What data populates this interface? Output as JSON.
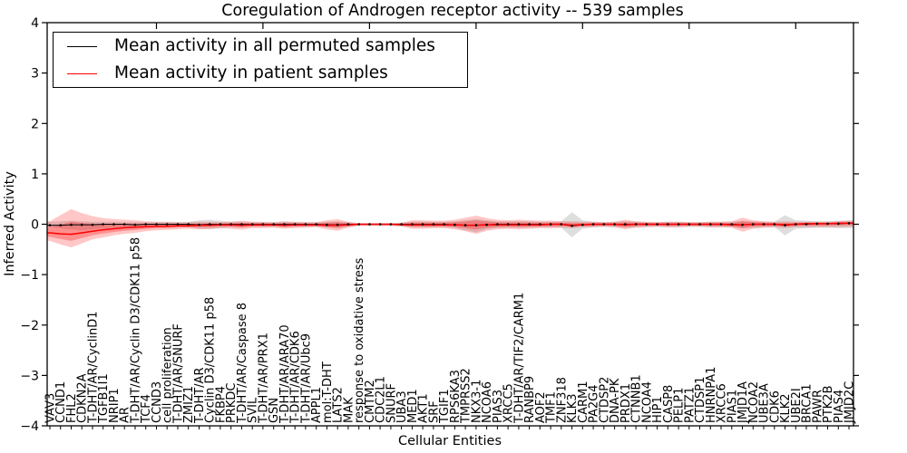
{
  "chart_data": {
    "type": "line",
    "title": "Coregulation of Androgen receptor activity -- 539 samples",
    "xlabel": "Cellular Entities",
    "ylabel": "Inferred Activity",
    "ylim": [
      -4,
      4
    ],
    "yticks": [
      "4",
      "3",
      "2",
      "1",
      "0",
      "−1",
      "−2",
      "−3",
      "−4"
    ],
    "grid": false,
    "legend_position": "upper left",
    "band_note": "shaded bands show spread around each mean line",
    "categories": [
      "VAV3",
      "CCND1",
      "FHL2",
      "CDKN2A",
      "T-DHT/AR/CyclinD1",
      "TGFB1I1",
      "NRIP1",
      "AR",
      "T-DHT/AR/Cyclin D3/CDK11 p58",
      "TCF4",
      "CCND3",
      "cell proliferation",
      "T-DHT/AR/SNURF",
      "ZMIZ1",
      "T-DHT/AR",
      "Cyclin D3/CDK11 p58",
      "FKBP4",
      "PRKDC",
      "T-DHT/AR/Caspase 8",
      "SVIL",
      "T-DHT/AR/PRX1",
      "GSN",
      "T-DHT/AR/ARA70",
      "T-DHT/AR/CDK6",
      "T-DHT/AR/Ubc9",
      "APPL1",
      "mol:T-DHT",
      "LATS2",
      "MAK",
      "response to oxidative stress",
      "CMTM2",
      "CDC2L1",
      "SNURF",
      "UBA3",
      "MED1",
      "AKT1",
      "SRF",
      "TGIF1",
      "RPS6KA3",
      "TMPRSS2",
      "NKX3-1",
      "NCOA6",
      "PIAS3",
      "XRCC5",
      "T-DHT/AR/TIF2/CARM1",
      "RANBP9",
      "AOF2",
      "TMF1",
      "ZNF318",
      "KLK3",
      "CARM1",
      "PA2G4",
      "CTDSP2",
      "DNA-PK",
      "PRDX1",
      "CTNNB1",
      "NCOA4",
      "HIP1",
      "CASP8",
      "PELP1",
      "PATZ1",
      "CTDSP1",
      "HNRNPA1",
      "XRCC6",
      "PIAS1",
      "JMJD1A",
      "NCOA2",
      "UBE3A",
      "CDK6",
      "KLK2",
      "UBE2I",
      "BRCA1",
      "PAWR",
      "PTK2B",
      "PIAS4",
      "JMJD2C"
    ],
    "series": [
      {
        "name": "Mean activity in all permuted samples",
        "color": "#000000",
        "band_color": "rgba(0,0,0,0.13)",
        "values": [
          -0.02,
          -0.02,
          -0.01,
          -0.01,
          -0.01,
          0,
          0,
          0,
          -0.01,
          0,
          0,
          0,
          0,
          0,
          -0.01,
          0,
          0,
          0,
          0,
          0,
          0,
          0,
          0,
          0,
          0,
          0,
          -0.01,
          -0.01,
          0,
          0,
          0,
          0,
          0,
          0,
          0,
          0,
          0,
          0,
          -0.01,
          -0.02,
          -0.02,
          -0.01,
          0,
          0,
          0,
          0,
          0,
          0,
          0,
          -0.03,
          -0.01,
          0,
          0,
          0,
          0,
          0,
          0,
          0,
          0,
          0,
          0,
          0,
          0,
          0,
          0,
          -0.01,
          0,
          0,
          0,
          -0.02,
          0,
          0,
          0.01,
          0.01,
          0.01,
          0.02
        ],
        "band_upper": [
          0.05,
          0.06,
          0.07,
          0.06,
          0.05,
          0.05,
          0.05,
          0.04,
          0.04,
          0.04,
          0.04,
          0.04,
          0.04,
          0.05,
          0.08,
          0.09,
          0.07,
          0.05,
          0.05,
          0.04,
          0.04,
          0.04,
          0.05,
          0.04,
          0.04,
          0.04,
          0.05,
          0.06,
          0.04,
          0.02,
          0.02,
          0.02,
          0.02,
          0.03,
          0.05,
          0.05,
          0.05,
          0.05,
          0.06,
          0.08,
          0.1,
          0.08,
          0.06,
          0.06,
          0.06,
          0.06,
          0.05,
          0.05,
          0.06,
          0.24,
          0.08,
          0.05,
          0.04,
          0.05,
          0.06,
          0.05,
          0.04,
          0.04,
          0.05,
          0.05,
          0.04,
          0.04,
          0.05,
          0.05,
          0.05,
          0.07,
          0.06,
          0.05,
          0.05,
          0.18,
          0.08,
          0.07,
          0.06,
          0.06,
          0.07,
          0.08
        ],
        "band_lower": [
          -0.06,
          -0.08,
          -0.1,
          -0.12,
          -0.1,
          -0.08,
          -0.07,
          -0.06,
          -0.06,
          -0.05,
          -0.05,
          -0.05,
          -0.05,
          -0.06,
          -0.09,
          -0.1,
          -0.08,
          -0.06,
          -0.06,
          -0.05,
          -0.05,
          -0.05,
          -0.06,
          -0.05,
          -0.05,
          -0.05,
          -0.06,
          -0.07,
          -0.05,
          -0.03,
          -0.03,
          -0.03,
          -0.03,
          -0.04,
          -0.06,
          -0.06,
          -0.06,
          -0.06,
          -0.07,
          -0.12,
          -0.16,
          -0.1,
          -0.07,
          -0.07,
          -0.07,
          -0.07,
          -0.06,
          -0.06,
          -0.07,
          -0.26,
          -0.09,
          -0.06,
          -0.05,
          -0.06,
          -0.07,
          -0.06,
          -0.05,
          -0.05,
          -0.06,
          -0.06,
          -0.05,
          -0.05,
          -0.06,
          -0.06,
          -0.06,
          -0.08,
          -0.07,
          -0.06,
          -0.06,
          -0.22,
          -0.09,
          -0.08,
          -0.07,
          -0.07,
          -0.08,
          -0.08
        ]
      },
      {
        "name": "Mean activity in patient samples",
        "color": "#ff0000",
        "band_color": "rgba(255,0,0,0.22)",
        "values": [
          -0.17,
          -0.19,
          -0.2,
          -0.17,
          -0.14,
          -0.11,
          -0.09,
          -0.07,
          -0.06,
          -0.05,
          -0.04,
          -0.04,
          -0.03,
          -0.03,
          -0.02,
          -0.02,
          -0.01,
          -0.01,
          -0.02,
          -0.01,
          -0.01,
          -0.01,
          -0.02,
          -0.01,
          -0.01,
          -0.01,
          -0.02,
          -0.02,
          -0.01,
          0,
          0,
          0,
          0,
          -0.01,
          -0.01,
          -0.01,
          -0.01,
          -0.01,
          -0.01,
          -0.02,
          -0.02,
          -0.01,
          -0.01,
          -0.01,
          -0.01,
          -0.01,
          -0.01,
          0,
          0,
          -0.02,
          -0.01,
          0,
          0,
          0,
          -0.01,
          0,
          0,
          0,
          0,
          0,
          0,
          0,
          0,
          0,
          -0.01,
          -0.01,
          0,
          0,
          0,
          -0.01,
          0,
          0.01,
          0.01,
          0.01,
          0.02,
          0.02
        ],
        "band_upper": [
          0.06,
          0.18,
          0.3,
          0.22,
          0.16,
          0.12,
          0.1,
          0.09,
          0.08,
          0.06,
          0.05,
          0.05,
          0.04,
          0.04,
          0.05,
          0.05,
          0.04,
          0.05,
          0.07,
          0.05,
          0.05,
          0.04,
          0.06,
          0.05,
          0.04,
          0.04,
          0.08,
          0.1,
          0.05,
          0.02,
          0.02,
          0.02,
          0.02,
          0.03,
          0.08,
          0.08,
          0.07,
          0.07,
          0.09,
          0.13,
          0.17,
          0.12,
          0.09,
          0.08,
          0.09,
          0.08,
          0.07,
          0.07,
          0.06,
          0.06,
          0.05,
          0.05,
          0.04,
          0.05,
          0.09,
          0.06,
          0.05,
          0.04,
          0.05,
          0.05,
          0.04,
          0.04,
          0.05,
          0.05,
          0.06,
          0.13,
          0.08,
          0.06,
          0.05,
          0.06,
          0.05,
          0.05,
          0.05,
          0.05,
          0.06,
          0.07
        ],
        "band_lower": [
          -0.33,
          -0.4,
          -0.46,
          -0.38,
          -0.3,
          -0.26,
          -0.22,
          -0.19,
          -0.17,
          -0.14,
          -0.12,
          -0.11,
          -0.1,
          -0.09,
          -0.1,
          -0.09,
          -0.08,
          -0.09,
          -0.11,
          -0.08,
          -0.08,
          -0.07,
          -0.09,
          -0.08,
          -0.07,
          -0.06,
          -0.1,
          -0.13,
          -0.07,
          -0.03,
          -0.03,
          -0.03,
          -0.03,
          -0.04,
          -0.09,
          -0.09,
          -0.08,
          -0.08,
          -0.1,
          -0.14,
          -0.19,
          -0.13,
          -0.1,
          -0.09,
          -0.1,
          -0.09,
          -0.08,
          -0.08,
          -0.07,
          -0.08,
          -0.06,
          -0.06,
          -0.05,
          -0.06,
          -0.1,
          -0.07,
          -0.06,
          -0.05,
          -0.06,
          -0.06,
          -0.05,
          -0.05,
          -0.06,
          -0.06,
          -0.07,
          -0.15,
          -0.09,
          -0.07,
          -0.06,
          -0.08,
          -0.06,
          -0.06,
          -0.06,
          -0.06,
          -0.06,
          -0.05
        ]
      }
    ]
  }
}
